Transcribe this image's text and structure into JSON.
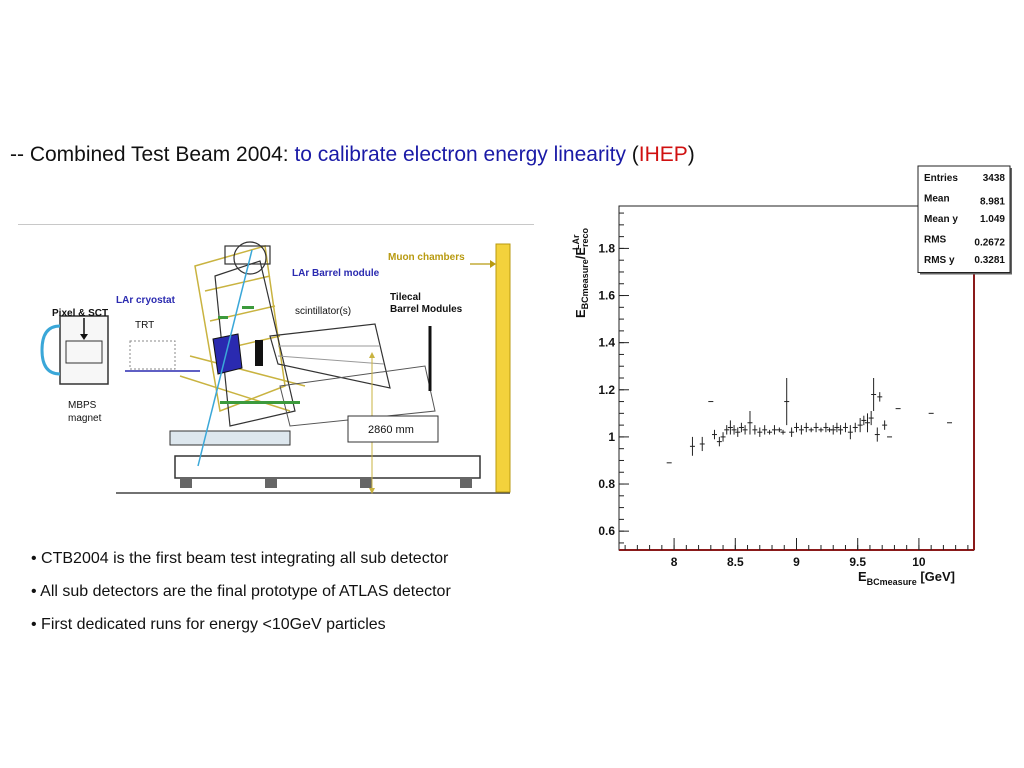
{
  "slide": {
    "title_prefix": "-- Combined Test Beam 2004: ",
    "title_blue": "to calibrate electron energy linearity",
    "title_paren_open": " (",
    "title_red": "IHEP",
    "title_paren_close": ")",
    "colors": {
      "title_blue": "#1a1aa6",
      "title_red": "#d01010"
    }
  },
  "diagram": {
    "labels": {
      "muon": "Muon chambers",
      "larbarrel": "LAr Barrel module",
      "cryostat": "LAr cryostat",
      "pixel": "Pixel & SCT",
      "trt": "TRT",
      "scint": "scintillator(s)",
      "tilecal1": "Tilecal",
      "tilecal2": "Barrel Modules",
      "mbps1": "MBPS",
      "mbps2": "magnet",
      "dist": "2860 mm"
    }
  },
  "bullets": [
    "• CTB2004 is the first beam test integrating all sub detector",
    "• All sub detectors are the final prototype of ATLAS detector",
    "• First dedicated runs for energy <10GeV particles"
  ],
  "chart_data": {
    "type": "scatter",
    "xlabel": "E_BCmeasure [GeV]",
    "ylabel": "E_BCmeasure/E_reco^LAr",
    "xlim": [
      7.55,
      10.45
    ],
    "ylim": [
      0.52,
      1.98
    ],
    "xticks": [
      8,
      8.5,
      9,
      9.5,
      10
    ],
    "yticks": [
      0.6,
      0.8,
      1,
      1.2,
      1.4,
      1.6,
      1.8
    ],
    "stats": [
      {
        "label": "Entries",
        "value": "3438"
      },
      {
        "label": "Mean",
        "value": "8.981"
      },
      {
        "label": "Mean y",
        "value": "1.049"
      },
      {
        "label": "RMS",
        "value": "0.2672"
      },
      {
        "label": "RMS y",
        "value": "0.3281"
      }
    ],
    "points": [
      {
        "x": 7.96,
        "y": 0.89,
        "ey": 0.0
      },
      {
        "x": 8.15,
        "y": 0.96,
        "ey": 0.04
      },
      {
        "x": 8.23,
        "y": 0.97,
        "ey": 0.03
      },
      {
        "x": 8.3,
        "y": 1.15,
        "ey": 0.0
      },
      {
        "x": 8.33,
        "y": 1.01,
        "ey": 0.02
      },
      {
        "x": 8.37,
        "y": 0.98,
        "ey": 0.02
      },
      {
        "x": 8.4,
        "y": 1.0,
        "ey": 0.02
      },
      {
        "x": 8.43,
        "y": 1.03,
        "ey": 0.02
      },
      {
        "x": 8.46,
        "y": 1.04,
        "ey": 0.03
      },
      {
        "x": 8.49,
        "y": 1.03,
        "ey": 0.02
      },
      {
        "x": 8.52,
        "y": 1.02,
        "ey": 0.02
      },
      {
        "x": 8.55,
        "y": 1.04,
        "ey": 0.02
      },
      {
        "x": 8.58,
        "y": 1.03,
        "ey": 0.02
      },
      {
        "x": 8.62,
        "y": 1.06,
        "ey": 0.05
      },
      {
        "x": 8.66,
        "y": 1.03,
        "ey": 0.02
      },
      {
        "x": 8.7,
        "y": 1.02,
        "ey": 0.02
      },
      {
        "x": 8.74,
        "y": 1.03,
        "ey": 0.02
      },
      {
        "x": 8.78,
        "y": 1.02,
        "ey": 0.01
      },
      {
        "x": 8.82,
        "y": 1.03,
        "ey": 0.02
      },
      {
        "x": 8.86,
        "y": 1.03,
        "ey": 0.01
      },
      {
        "x": 8.89,
        "y": 1.02,
        "ey": 0.01
      },
      {
        "x": 8.92,
        "y": 1.15,
        "ey": 0.1
      },
      {
        "x": 8.96,
        "y": 1.02,
        "ey": 0.02
      },
      {
        "x": 9.0,
        "y": 1.04,
        "ey": 0.02
      },
      {
        "x": 9.04,
        "y": 1.03,
        "ey": 0.02
      },
      {
        "x": 9.08,
        "y": 1.04,
        "ey": 0.02
      },
      {
        "x": 9.12,
        "y": 1.03,
        "ey": 0.01
      },
      {
        "x": 9.16,
        "y": 1.04,
        "ey": 0.02
      },
      {
        "x": 9.2,
        "y": 1.03,
        "ey": 0.01
      },
      {
        "x": 9.24,
        "y": 1.04,
        "ey": 0.02
      },
      {
        "x": 9.27,
        "y": 1.03,
        "ey": 0.01
      },
      {
        "x": 9.3,
        "y": 1.03,
        "ey": 0.02
      },
      {
        "x": 9.33,
        "y": 1.04,
        "ey": 0.02
      },
      {
        "x": 9.36,
        "y": 1.03,
        "ey": 0.02
      },
      {
        "x": 9.4,
        "y": 1.04,
        "ey": 0.02
      },
      {
        "x": 9.44,
        "y": 1.02,
        "ey": 0.03
      },
      {
        "x": 9.48,
        "y": 1.04,
        "ey": 0.02
      },
      {
        "x": 9.52,
        "y": 1.05,
        "ey": 0.03
      },
      {
        "x": 9.55,
        "y": 1.07,
        "ey": 0.02
      },
      {
        "x": 9.58,
        "y": 1.06,
        "ey": 0.04
      },
      {
        "x": 9.61,
        "y": 1.08,
        "ey": 0.03
      },
      {
        "x": 9.63,
        "y": 1.18,
        "ey": 0.07
      },
      {
        "x": 9.66,
        "y": 1.01,
        "ey": 0.03
      },
      {
        "x": 9.68,
        "y": 1.17,
        "ey": 0.02
      },
      {
        "x": 9.72,
        "y": 1.05,
        "ey": 0.02
      },
      {
        "x": 9.76,
        "y": 1.0,
        "ey": 0.0
      },
      {
        "x": 9.83,
        "y": 1.12,
        "ey": 0.0
      },
      {
        "x": 10.1,
        "y": 1.1,
        "ey": 0.0
      },
      {
        "x": 10.25,
        "y": 1.06,
        "ey": 0.0
      }
    ]
  }
}
